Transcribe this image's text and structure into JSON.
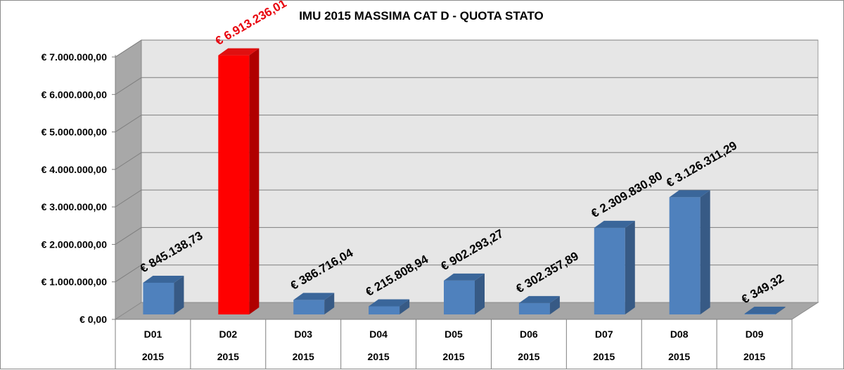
{
  "chart_data": {
    "type": "bar",
    "title": "IMU 2015 MASSIMA CAT D - QUOTA STATO",
    "categories": [
      "D01",
      "D02",
      "D03",
      "D04",
      "D05",
      "D06",
      "D07",
      "D08",
      "D09"
    ],
    "sub_categories": [
      "2015",
      "2015",
      "2015",
      "2015",
      "2015",
      "2015",
      "2015",
      "2015",
      "2015"
    ],
    "values": [
      845138.73,
      6913236.01,
      386716.04,
      215808.94,
      902293.27,
      302357.89,
      2309830.8,
      3126311.29,
      349.32
    ],
    "data_labels": [
      "€ 845.138,73",
      "€ 6.913.236,01",
      "€ 386.716,04",
      "€ 215.808,94",
      "€ 902.293,27",
      "€ 302.357,89",
      "€ 2.309.830,80",
      "€ 3.126.311,29",
      "€ 349,32"
    ],
    "y_tick_values": [
      0,
      1000000,
      2000000,
      3000000,
      4000000,
      5000000,
      6000000,
      7000000
    ],
    "y_tick_labels": [
      "€ 0,00",
      "€ 1.000.000,00",
      "€ 2.000.000,00",
      "€ 3.000.000,00",
      "€ 4.000.000,00",
      "€ 5.000.000,00",
      "€ 6.000.000,00",
      "€ 7.000.000,00"
    ],
    "ylim": [
      0,
      7000000
    ],
    "xlabel": "",
    "ylabel": "",
    "grid": true,
    "legend": "none",
    "highlight_index": 1,
    "colors": {
      "bar_front": "#4f81bd",
      "bar_side": "#375a85",
      "bar_top": "#3a669a",
      "highlight_front": "#ff0000",
      "highlight_side": "#b00000",
      "highlight_top": "#e01010",
      "highlight_label": "#e8000b",
      "back_wall": "#e6e6e6",
      "side_wall": "#a8a8a8",
      "floor": "#a6a6a6",
      "gridline": "#7f7f7f"
    }
  }
}
